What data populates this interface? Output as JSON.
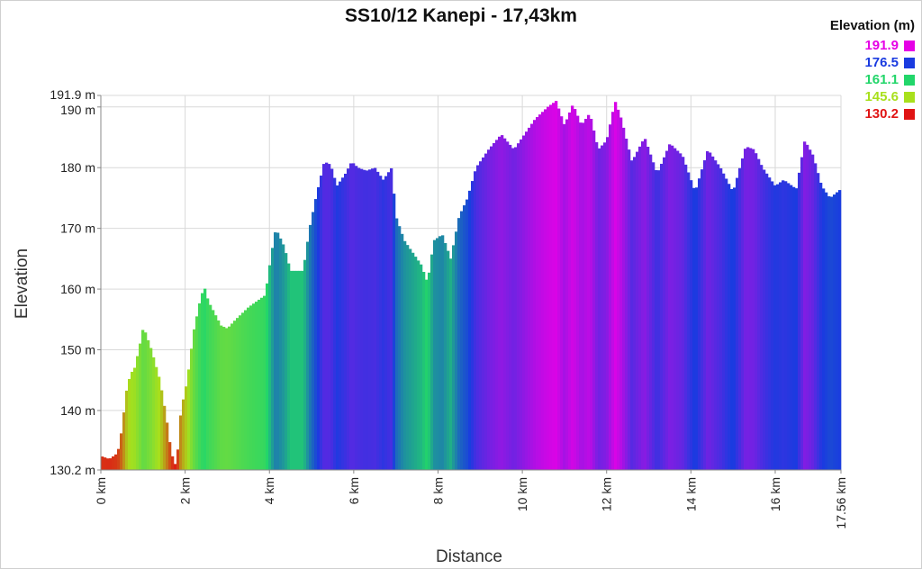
{
  "chart_data": {
    "type": "area",
    "title": "SS10/12 Kanepi - 17,43km",
    "xlabel": "Distance",
    "ylabel": "Elevation",
    "xlim": [
      0,
      17.56
    ],
    "ylim": [
      130.2,
      191.9
    ],
    "x_ticks": [
      "0 km",
      "2 km",
      "4 km",
      "6 km",
      "8 km",
      "10 km",
      "12 km",
      "14 km",
      "16 km",
      "17.56 km"
    ],
    "x_tick_values": [
      0,
      2,
      4,
      6,
      8,
      10,
      12,
      14,
      16,
      17.56
    ],
    "y_ticks": [
      "130.2 m",
      "140 m",
      "150 m",
      "160 m",
      "170 m",
      "180 m",
      "190 m",
      "191.9 m"
    ],
    "y_tick_values": [
      130.2,
      140,
      150,
      160,
      170,
      180,
      190,
      191.9
    ],
    "grid": true,
    "legend": {
      "title": "Elevation (m)",
      "placement": "top-right",
      "entries": [
        {
          "label": "191.9",
          "color": "#e600e6"
        },
        {
          "label": "176.5",
          "color": "#1a3be0"
        },
        {
          "label": "161.1",
          "color": "#22d66a"
        },
        {
          "label": "145.6",
          "color": "#a8e01c"
        },
        {
          "label": "130.2",
          "color": "#e01414"
        }
      ]
    },
    "x": [
      0,
      0.2,
      0.4,
      0.5,
      0.6,
      0.7,
      0.8,
      0.9,
      1.0,
      1.05,
      1.2,
      1.4,
      1.55,
      1.65,
      1.75,
      1.82,
      1.9,
      2.05,
      2.2,
      2.35,
      2.45,
      2.55,
      2.7,
      2.85,
      3.0,
      3.2,
      3.5,
      3.9,
      4.05,
      4.15,
      4.35,
      4.5,
      4.8,
      4.95,
      5.1,
      5.3,
      5.45,
      5.6,
      5.8,
      5.95,
      6.1,
      6.3,
      6.5,
      6.7,
      6.9,
      7.0,
      7.2,
      7.4,
      7.6,
      7.75,
      7.9,
      8.1,
      8.3,
      8.5,
      8.7,
      8.9,
      9.2,
      9.5,
      9.8,
      10.0,
      10.3,
      10.6,
      10.8,
      11.0,
      11.2,
      11.4,
      11.6,
      11.8,
      12.0,
      12.2,
      12.35,
      12.6,
      12.9,
      13.2,
      13.5,
      13.8,
      14.1,
      14.4,
      14.7,
      15.0,
      15.3,
      15.5,
      15.7,
      16.0,
      16.2,
      16.5,
      16.7,
      16.9,
      17.1,
      17.3,
      17.56
    ],
    "y": [
      132.5,
      132.0,
      133.0,
      137.0,
      143.0,
      146.0,
      147.0,
      150.0,
      153.5,
      153.0,
      150.0,
      145.0,
      139.0,
      134.0,
      130.8,
      133.0,
      140.0,
      145.0,
      153.0,
      158.0,
      160.5,
      158.0,
      156.0,
      154.0,
      153.5,
      155.0,
      157.0,
      159.0,
      166.0,
      170.0,
      167.0,
      163.0,
      163.0,
      170.0,
      175.0,
      181.0,
      180.5,
      177.0,
      179.0,
      181.0,
      180.0,
      179.5,
      180.0,
      178.0,
      180.0,
      172.0,
      168.0,
      166.0,
      164.0,
      161.0,
      168.0,
      169.0,
      165.0,
      172.0,
      175.0,
      180.0,
      183.0,
      185.5,
      183.0,
      185.0,
      188.0,
      190.0,
      191.0,
      187.0,
      190.5,
      187.0,
      189.0,
      183.0,
      184.5,
      191.0,
      188.0,
      181.0,
      185.0,
      179.0,
      184.0,
      182.0,
      176.0,
      183.0,
      180.0,
      176.0,
      183.5,
      183.0,
      180.0,
      177.0,
      178.0,
      176.5,
      184.5,
      182.0,
      177.0,
      175.0,
      176.5
    ]
  }
}
